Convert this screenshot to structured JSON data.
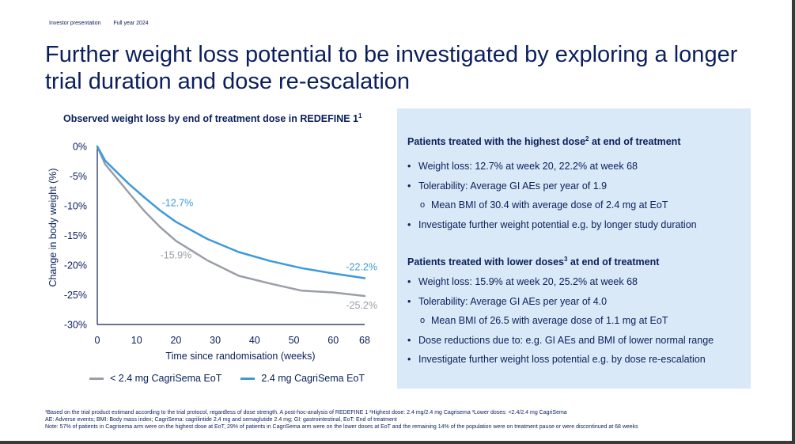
{
  "header": {
    "presentation": "Investor presentation",
    "period": "Full year 2024"
  },
  "page_title": "Further weight loss potential to be investigated by exploring a longer trial duration and dose re-escalation",
  "chart_heading": "Observed weight loss by end of treatment dose in REDEFINE 1",
  "chart_heading_sup": "1",
  "chart_data": {
    "type": "line",
    "title": "Observed weight loss by end of treatment dose in REDEFINE 1",
    "xlabel": "Time since randomisation (weeks)",
    "ylabel": "Change in body weight (%)",
    "xticks": [
      0,
      10,
      20,
      30,
      40,
      50,
      60,
      68
    ],
    "yticks": [
      "0%",
      "-5%",
      "-10%",
      "-15%",
      "-20%",
      "-25%",
      "-30%"
    ],
    "ytick_values": [
      0,
      -5,
      -10,
      -15,
      -20,
      -25,
      -30
    ],
    "xlim": [
      0,
      68
    ],
    "ylim": [
      -30,
      0
    ],
    "grid": false,
    "legend_position": "bottom",
    "series": [
      {
        "name": "< 2.4 mg CagriSema EoT",
        "color": "#9a9ea8",
        "x": [
          0,
          2,
          4,
          8,
          12,
          16,
          20,
          28,
          36,
          44,
          52,
          60,
          68
        ],
        "values": [
          0,
          -3.0,
          -4.6,
          -7.8,
          -10.9,
          -13.6,
          -15.9,
          -19.2,
          -21.8,
          -23.1,
          -24.3,
          -24.6,
          -25.2
        ],
        "annotations": [
          {
            "x": 20,
            "value": -15.9,
            "text": "-15.9%"
          },
          {
            "x": 68,
            "value": -25.2,
            "text": "-25.2%"
          }
        ]
      },
      {
        "name": "2.4 mg CagriSema EoT",
        "color": "#3d9ad9",
        "x": [
          0,
          2,
          4,
          8,
          12,
          16,
          20,
          28,
          36,
          44,
          52,
          60,
          68
        ],
        "values": [
          0,
          -2.4,
          -3.7,
          -6.3,
          -8.6,
          -10.8,
          -12.7,
          -15.6,
          -17.8,
          -19.3,
          -20.5,
          -21.4,
          -22.2
        ],
        "annotations": [
          {
            "x": 20,
            "value": -12.7,
            "text": "-12.7%"
          },
          {
            "x": 68,
            "value": -22.2,
            "text": "-22.2%"
          }
        ]
      }
    ]
  },
  "panel": {
    "section1": {
      "heading": "Patients treated with the highest dose",
      "heading_sup": "2",
      "heading_tail": " at end of treatment",
      "items": [
        "Weight loss: 12.7% at week 20, 22.2% at week 68",
        "Tolerability: Average GI AEs per year of 1.9",
        "Mean BMI of 30.4 with average dose of 2.4 mg at EoT",
        "Investigate further weight potential e.g. by longer study duration"
      ]
    },
    "section2": {
      "heading": "Patients treated with lower doses",
      "heading_sup": "3",
      "heading_tail": " at end of treatment",
      "items": [
        "Weight loss: 15.9% at week 20, 25.2% at week 68",
        "Tolerability: Average GI AEs per year of 4.0",
        "Mean BMI of 26.5 with average dose of 1.1 mg at EoT",
        "Dose reductions due to: e.g. GI AEs and BMI of lower normal range",
        "Investigate further weight loss potential e.g. by dose re-escalation"
      ]
    }
  },
  "footnotes": [
    "¹Based on the trial product estimand according to the trial protocol, regardless of dose strength. A post-hoc-analysis of REDEFINE 1 ²Highest dose: 2.4 mg/2.4 mg Cagrisema ³Lower doses: <2.4/2.4 mg CagriSema",
    "AE: Adverse events; BMI: Body mass index; CagriSema: cagrilintide 2.4 mg and semaglutide 2.4 mg; GI: gastrointestinal, EoT: End of treatment",
    "Note: 57% of patients in Cagrisema arm were on the highest dose at EoT, 29% of patients in CagriSema arm were on the lower doses at EoT and the remaining 14% of the population were on treatment pause or were discontinued at 68 weeks"
  ]
}
